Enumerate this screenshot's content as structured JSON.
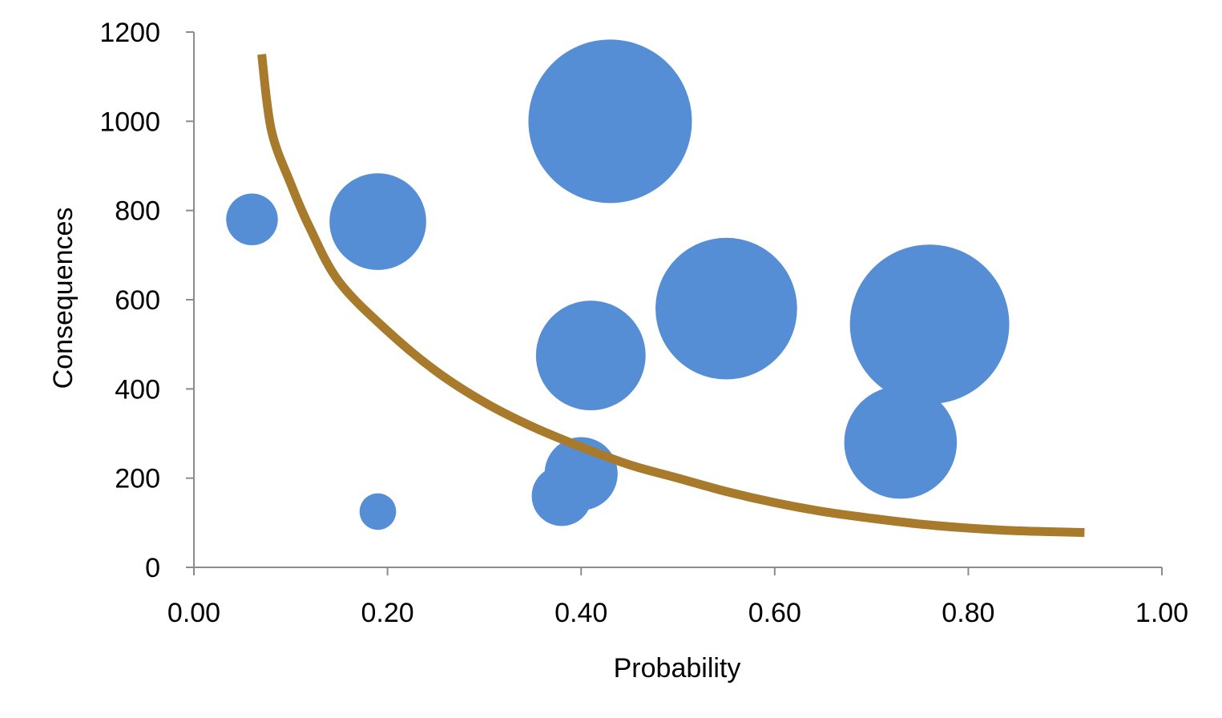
{
  "chart_data": {
    "type": "bubble",
    "title": "",
    "xlabel": "Probability",
    "ylabel": "Consequences",
    "xlim": [
      0,
      1
    ],
    "ylim": [
      0,
      1200
    ],
    "x_ticks": [
      "0.00",
      "0.20",
      "0.40",
      "0.60",
      "0.80",
      "1.00"
    ],
    "y_ticks": [
      "0",
      "200",
      "400",
      "600",
      "800",
      "1000",
      "1200"
    ],
    "grid": false,
    "legend": "none",
    "bubble_color": "#558ED5",
    "curve_color": "#A87A2C",
    "bubbles": [
      {
        "x": 0.06,
        "y": 780,
        "size": 2
      },
      {
        "x": 0.19,
        "y": 775,
        "size": 7
      },
      {
        "x": 0.19,
        "y": 125,
        "size": 1
      },
      {
        "x": 0.43,
        "y": 1000,
        "size": 20
      },
      {
        "x": 0.41,
        "y": 475,
        "size": 9
      },
      {
        "x": 0.4,
        "y": 210,
        "size": 4
      },
      {
        "x": 0.38,
        "y": 160,
        "size": 2.7
      },
      {
        "x": 0.55,
        "y": 580,
        "size": 15
      },
      {
        "x": 0.76,
        "y": 545,
        "size": 19
      },
      {
        "x": 0.73,
        "y": 280,
        "size": 9.5
      }
    ],
    "curve": {
      "x": [
        0.07,
        0.08,
        0.1,
        0.12,
        0.15,
        0.2,
        0.25,
        0.3,
        0.35,
        0.4,
        0.45,
        0.5,
        0.55,
        0.6,
        0.65,
        0.7,
        0.75,
        0.8,
        0.85,
        0.92
      ],
      "y": [
        1150,
        980,
        860,
        760,
        640,
        530,
        440,
        370,
        315,
        270,
        230,
        200,
        170,
        145,
        125,
        110,
        97,
        88,
        82,
        78
      ]
    }
  }
}
